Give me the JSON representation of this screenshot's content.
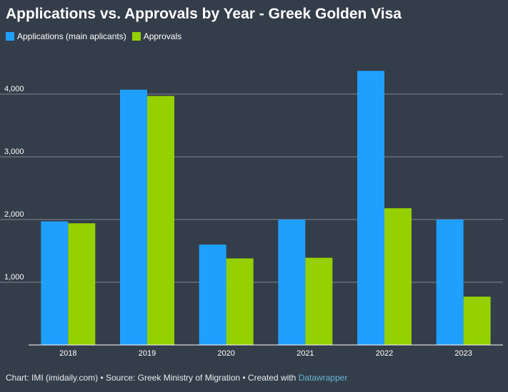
{
  "title": "Applications vs. Approvals by Year - Greek Golden Visa",
  "legend": [
    {
      "label": "Applications (main aplicants)",
      "color": "#1fa0ff"
    },
    {
      "label": "Approvals",
      "color": "#95d000"
    }
  ],
  "footer": {
    "text": "Chart: IMI (imidaily.com) • Source: Greek Ministry of Migration • Created with ",
    "link_text": "Datawrapper"
  },
  "chart_data": {
    "type": "bar",
    "categories": [
      "2018",
      "2019",
      "2020",
      "2021",
      "2022",
      "2023"
    ],
    "series": [
      {
        "name": "Applications (main aplicants)",
        "color": "#1fa0ff",
        "values": [
          1970,
          4070,
          1600,
          2000,
          4370,
          2000
        ]
      },
      {
        "name": "Approvals",
        "color": "#95d000",
        "values": [
          1940,
          3970,
          1380,
          1390,
          2180,
          770
        ]
      }
    ],
    "yticks": [
      1000,
      2000,
      3000,
      4000
    ],
    "ytick_labels": [
      "1,000",
      "2,000",
      "3,000",
      "4,000"
    ],
    "ylim": [
      0,
      4500
    ],
    "xlabel": "",
    "ylabel": "",
    "grid": true,
    "legend_position": "top-left"
  }
}
